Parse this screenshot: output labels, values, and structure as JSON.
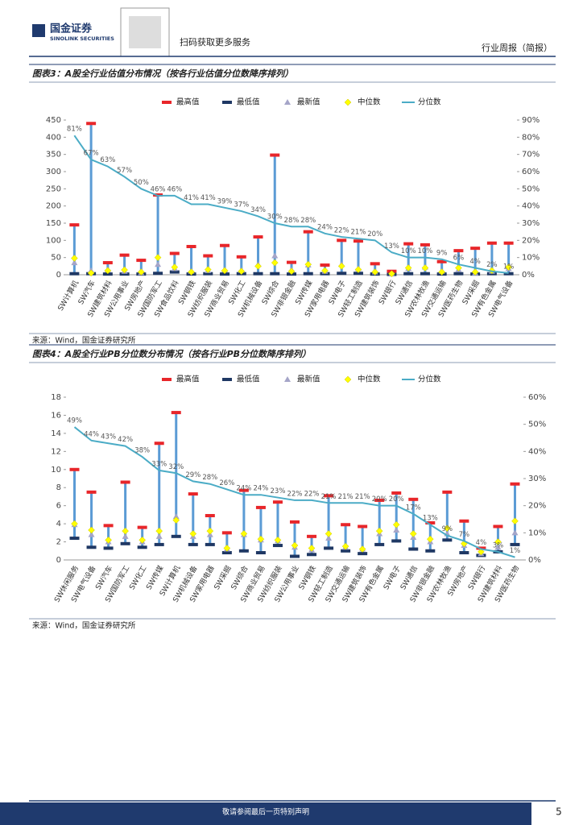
{
  "header": {
    "brand": "国金证券",
    "brand_en": "SINOLINK SECURITIES",
    "qr_text": "扫码获取更多服务",
    "report_type": "行业周报（简报）"
  },
  "footer": {
    "note": "敬请参阅最后一页特别声明",
    "page": "5"
  },
  "chart_data": [
    {
      "type": "range",
      "title": "图表3：A股全行业估值分布情况（按各行业估值分位数降序排列）",
      "source": "来源：Wind，国金证券研究所",
      "categories": [
        "SW计算机",
        "SW汽车",
        "SW建筑材料",
        "SW公用事业",
        "SW房地产",
        "SW国防军工",
        "SW食品饮料",
        "SW钢铁",
        "SW纺织服装",
        "SW商业贸易",
        "SW化工",
        "SW机械设备",
        "SW综合",
        "SW非银金融",
        "SW传媒",
        "SW家用电器",
        "SW电子",
        "SW轻工制造",
        "SW建筑装饰",
        "SW银行",
        "SW通信",
        "SW农林牧渔",
        "SW交通运输",
        "SW医药生物",
        "SW采掘",
        "SW有色金属",
        "SW电气设备"
      ],
      "ylim": [
        0,
        450
      ],
      "yticks": [
        0,
        50,
        100,
        150,
        200,
        250,
        300,
        350,
        400,
        450
      ],
      "y2lim": [
        0,
        90
      ],
      "y2ticks": [
        {
          "value": 0,
          "label": "0%"
        },
        {
          "value": 10,
          "label": "10%"
        },
        {
          "value": 20,
          "label": "20%"
        },
        {
          "value": 30,
          "label": "30%"
        },
        {
          "value": 40,
          "label": "40%"
        },
        {
          "value": 50,
          "label": "50%"
        },
        {
          "value": 60,
          "label": "60%"
        },
        {
          "value": 70,
          "label": "70%"
        },
        {
          "value": 80,
          "label": "80%"
        },
        {
          "value": 90,
          "label": "90%"
        }
      ],
      "series": [
        {
          "name": "最高值",
          "color": "#e8262a",
          "marker": "dash",
          "values": [
            145,
            440,
            35,
            57,
            42,
            232,
            62,
            82,
            55,
            85,
            52,
            110,
            348,
            36,
            125,
            28,
            100,
            98,
            32,
            10,
            90,
            87,
            38,
            70,
            77,
            92,
            92
          ]
        },
        {
          "name": "最低值",
          "color": "#1f3864",
          "marker": "dash",
          "values": [
            3,
            3,
            2,
            2,
            2,
            4,
            8,
            2,
            3,
            2,
            3,
            3,
            3,
            2,
            3,
            3,
            4,
            4,
            2,
            1,
            3,
            3,
            2,
            3,
            2,
            3,
            3
          ]
        },
        {
          "name": "最新值",
          "color": "#a5a5c8",
          "marker": "triangle",
          "values": [
            35,
            12,
            15,
            10,
            6,
            30,
            18,
            10,
            12,
            14,
            13,
            30,
            55,
            14,
            28,
            10,
            30,
            18,
            8,
            2,
            18,
            22,
            10,
            15,
            5,
            10,
            18
          ]
        },
        {
          "name": "中位数",
          "color": "#ffff00",
          "marker": "diamond",
          "values": [
            48,
            5,
            12,
            14,
            8,
            50,
            22,
            8,
            15,
            12,
            10,
            25,
            35,
            10,
            30,
            12,
            25,
            15,
            8,
            3,
            20,
            20,
            8,
            20,
            8,
            12,
            22
          ]
        },
        {
          "name": "分位数",
          "color": "#4bacc6",
          "marker": "line",
          "axis": "y2",
          "values": [
            81,
            67,
            63,
            57,
            50,
            46,
            46,
            41,
            41,
            39,
            37,
            34,
            30,
            28,
            28,
            24,
            22,
            21,
            20,
            13,
            10,
            10,
            9,
            6,
            4,
            2,
            1
          ],
          "value_labels": [
            "81%",
            "67%",
            "63%",
            "57%",
            "50%",
            "46%",
            "46%",
            "41%",
            "41%",
            "39%",
            "37%",
            "34%",
            "30%",
            "28%",
            "28%",
            "24%",
            "22%",
            "21%",
            "20%",
            "13%",
            "10%",
            "10%",
            "9%",
            "6%",
            "4%",
            "2%",
            "1%"
          ]
        }
      ]
    },
    {
      "type": "range",
      "title": "图表4：A股全行业PB分位数分布情况（按各行业PB分位数降序排列）",
      "source": "来源：Wind，国金证券研究所",
      "categories": [
        "SW休闲服务",
        "SW电气设备",
        "SW汽车",
        "SW国防军工",
        "SW化工",
        "SW传媒",
        "SW计算机",
        "SW机械设备",
        "SW家用电器",
        "SW采掘",
        "SW综合",
        "SW商业贸易",
        "SW纺织服装",
        "SW公用事业",
        "SW钢铁",
        "SW轻工制造",
        "SW交通运输",
        "SW建筑装饰",
        "SW有色金属",
        "SW电子",
        "SW通信",
        "SW非银金融",
        "SW农林牧渔",
        "SW房地产",
        "SW银行",
        "SW建筑材料",
        "SW医药生物"
      ],
      "ylim": [
        0,
        18
      ],
      "yticks": [
        0,
        2,
        4,
        6,
        8,
        10,
        12,
        14,
        16,
        18
      ],
      "y2lim": [
        0,
        60
      ],
      "y2ticks": [
        {
          "value": 0,
          "label": "0%"
        },
        {
          "value": 10,
          "label": "10%"
        },
        {
          "value": 20,
          "label": "20%"
        },
        {
          "value": 30,
          "label": "30%"
        },
        {
          "value": 40,
          "label": "40%"
        },
        {
          "value": 50,
          "label": "50%"
        },
        {
          "value": 60,
          "label": "60%"
        }
      ],
      "series": [
        {
          "name": "最高值",
          "color": "#e8262a",
          "marker": "dash",
          "values": [
            10,
            7.5,
            3.8,
            8.6,
            3.6,
            12.9,
            16.3,
            7.3,
            4.9,
            3,
            7.7,
            5.8,
            6.4,
            4.2,
            2.6,
            7.1,
            3.9,
            3.7,
            6.6,
            7.4,
            6.7,
            4.1,
            7.5,
            4.3,
            1.3,
            3.7,
            8.4
          ]
        },
        {
          "name": "最低值",
          "color": "#1f3864",
          "marker": "dash",
          "values": [
            2.4,
            1.4,
            1.3,
            1.8,
            1.4,
            1.7,
            2.6,
            1.7,
            1.7,
            0.8,
            1.0,
            0.8,
            1.6,
            0.4,
            0.6,
            1.3,
            1.0,
            0.7,
            1.7,
            2.1,
            1.2,
            1.0,
            2.2,
            0.8,
            0.5,
            0.9,
            1.7
          ]
        },
        {
          "name": "最新值",
          "color": "#a5a5c8",
          "marker": "triangle",
          "values": [
            3.9,
            2.8,
            2.0,
            2.6,
            2.0,
            2.6,
            4.8,
            2.6,
            2.8,
            1.2,
            2.8,
            2.2,
            2.1,
            1.4,
            1.1,
            2.4,
            1.4,
            1.2,
            2.9,
            3.3,
            2.5,
            2.0,
            2.9,
            1.6,
            0.7,
            1.4,
            3.0
          ]
        },
        {
          "name": "中位数",
          "color": "#ffff00",
          "marker": "diamond",
          "values": [
            4.0,
            3.3,
            2.2,
            3.2,
            2.2,
            3.2,
            4.4,
            2.9,
            3.2,
            1.3,
            2.9,
            2.3,
            2.2,
            1.6,
            1.3,
            2.9,
            1.5,
            1.2,
            3.2,
            3.9,
            2.9,
            2.3,
            3.5,
            1.8,
            0.9,
            2.0,
            4.3
          ]
        },
        {
          "name": "分位数",
          "color": "#4bacc6",
          "marker": "line",
          "axis": "y2",
          "values": [
            49,
            44,
            43,
            42,
            38,
            33,
            32,
            29,
            28,
            26,
            24,
            24,
            23,
            22,
            22,
            21,
            21,
            21,
            20,
            20,
            17,
            13,
            9,
            7,
            4,
            3,
            1
          ],
          "value_labels": [
            "49%",
            "44%",
            "43%",
            "42%",
            "38%",
            "33%",
            "32%",
            "29%",
            "28%",
            "26%",
            "24%",
            "24%",
            "23%",
            "22%",
            "22%",
            "21%",
            "21%",
            "21%",
            "20%",
            "20%",
            "17%",
            "13%",
            "9%",
            "7%",
            "4%",
            "3%",
            "1%"
          ]
        }
      ]
    }
  ]
}
